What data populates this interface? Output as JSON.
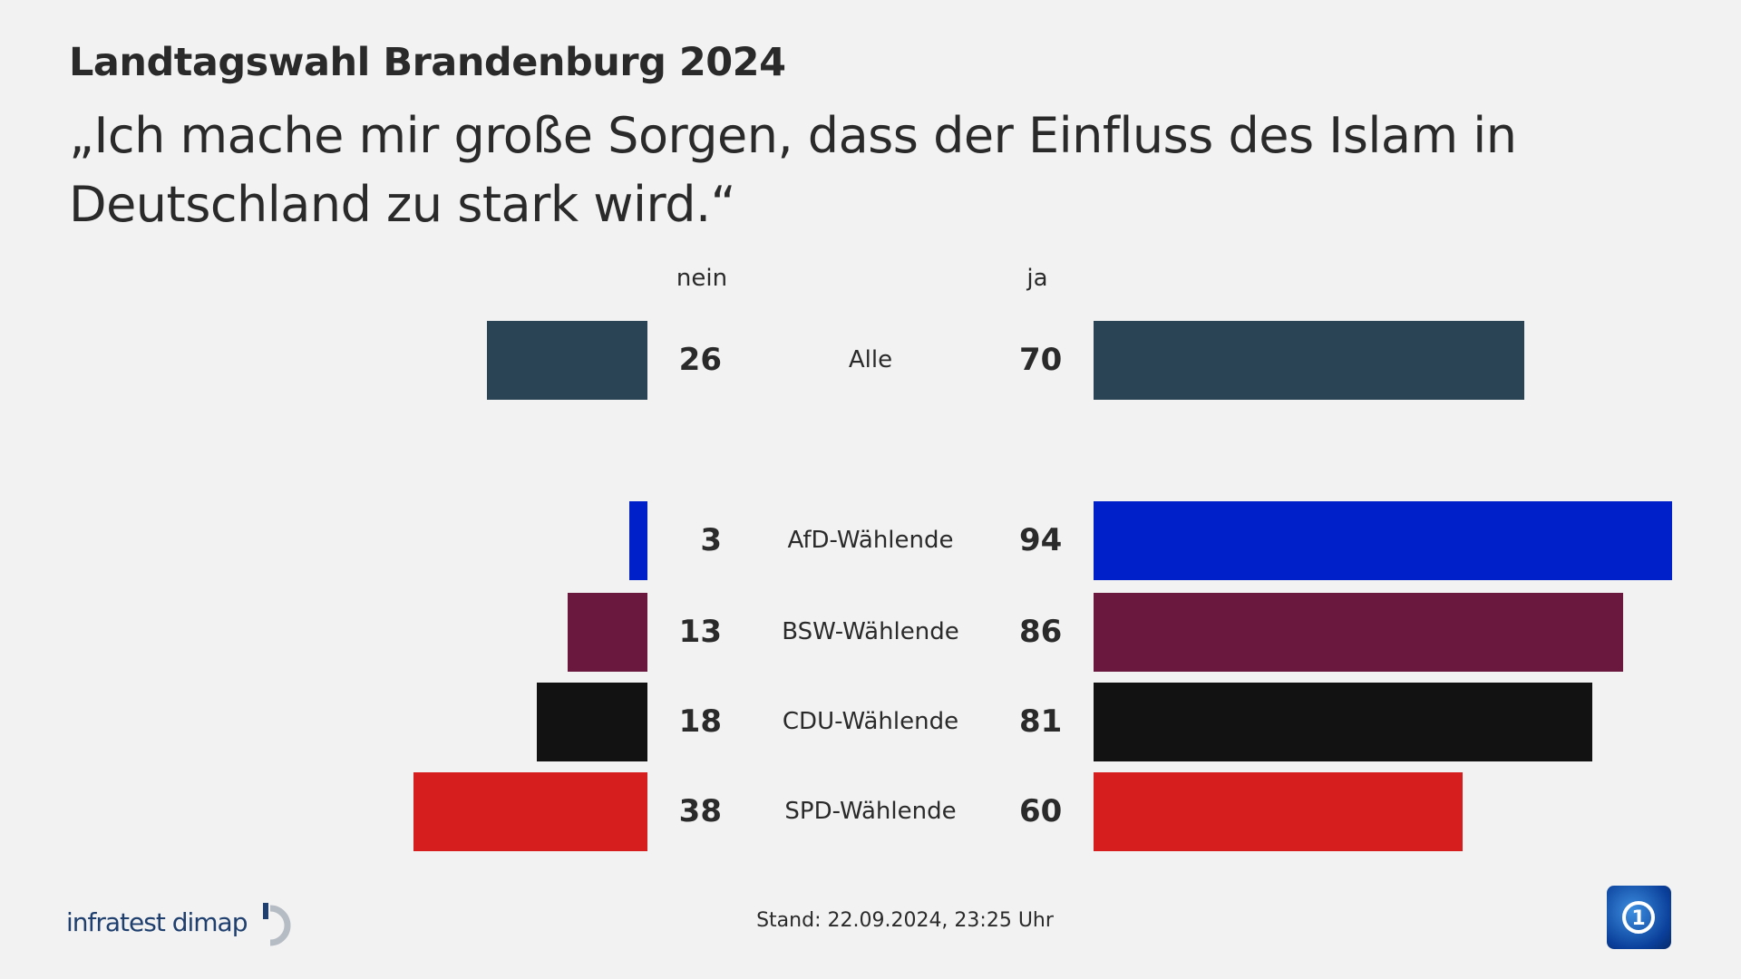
{
  "title": "Landtagswahl Brandenburg 2024",
  "subtitle": "„Ich mache mir große Sorgen, dass der Einfluss des Islam in Deutschland zu stark wird.“",
  "chart_data": {
    "type": "bar",
    "orientation": "horizontal-diverging",
    "column_headers": {
      "left": "nein",
      "right": "ja"
    },
    "categories": [
      "Alle",
      "AfD-Wählende",
      "BSW-Wählende",
      "CDU-Wählende",
      "SPD-Wählende"
    ],
    "series": [
      {
        "name": "nein",
        "values": [
          26,
          3,
          13,
          18,
          38
        ]
      },
      {
        "name": "ja",
        "values": [
          70,
          94,
          86,
          81,
          60
        ]
      }
    ],
    "colors": [
      "#2a4455",
      "#0021c9",
      "#6a183e",
      "#121212",
      "#d61e1e"
    ]
  },
  "footer": {
    "source_logo": "infratest dimap",
    "stand": "Stand:  22.09.2024, 23:25 Uhr",
    "broadcaster_icon": "ard-das-erste-icon"
  }
}
